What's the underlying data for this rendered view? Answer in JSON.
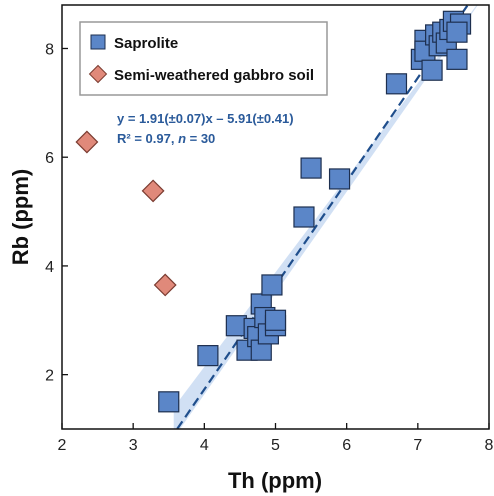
{
  "chart_data": {
    "type": "scatter",
    "xlabel": "Th (ppm)",
    "ylabel": "Rb (ppm)",
    "xlim": [
      2,
      8
    ],
    "ylim": [
      1,
      8.8
    ],
    "xticks": [
      "2",
      "3",
      "4",
      "5",
      "6",
      "7",
      "8"
    ],
    "yticks": [
      "2",
      "4",
      "6",
      "8"
    ],
    "series": [
      {
        "name": "Saprolite",
        "marker": "square",
        "color": "#5b86c8",
        "points": [
          [
            3.5,
            1.5
          ],
          [
            4.05,
            2.35
          ],
          [
            4.45,
            2.9
          ],
          [
            4.6,
            2.45
          ],
          [
            4.7,
            2.85
          ],
          [
            4.75,
            2.7
          ],
          [
            4.8,
            2.45
          ],
          [
            4.8,
            3.3
          ],
          [
            4.85,
            3.05
          ],
          [
            4.9,
            2.75
          ],
          [
            4.95,
            3.65
          ],
          [
            5.0,
            2.9
          ],
          [
            5.0,
            3.0
          ],
          [
            5.4,
            4.9
          ],
          [
            5.5,
            5.8
          ],
          [
            5.9,
            5.6
          ],
          [
            6.7,
            7.35
          ],
          [
            7.05,
            7.8
          ],
          [
            7.1,
            8.15
          ],
          [
            7.1,
            7.95
          ],
          [
            7.2,
            7.6
          ],
          [
            7.25,
            8.25
          ],
          [
            7.3,
            8.05
          ],
          [
            7.35,
            8.3
          ],
          [
            7.4,
            8.1
          ],
          [
            7.45,
            8.35
          ],
          [
            7.5,
            8.5
          ],
          [
            7.55,
            7.8
          ],
          [
            7.6,
            8.45
          ],
          [
            7.55,
            8.3
          ]
        ]
      },
      {
        "name": "Semi-weathered gabbro soil",
        "marker": "diamond",
        "color": "#e0897a",
        "points": [
          [
            2.35,
            6.28
          ],
          [
            3.28,
            5.38
          ],
          [
            3.45,
            3.65
          ]
        ]
      }
    ],
    "fit": {
      "slope": 1.91,
      "intercept": -5.91,
      "x_range": [
        3.62,
        8
      ],
      "band_halfwidth": 0.28,
      "equation": "y = 1.91(±0.07)x – 5.91(±0.41)",
      "r2_prefix": "R² = 0.97, ",
      "r2_n": "n",
      "r2_suffix": " = 30"
    },
    "legend_position": "top-left",
    "grid": false
  }
}
